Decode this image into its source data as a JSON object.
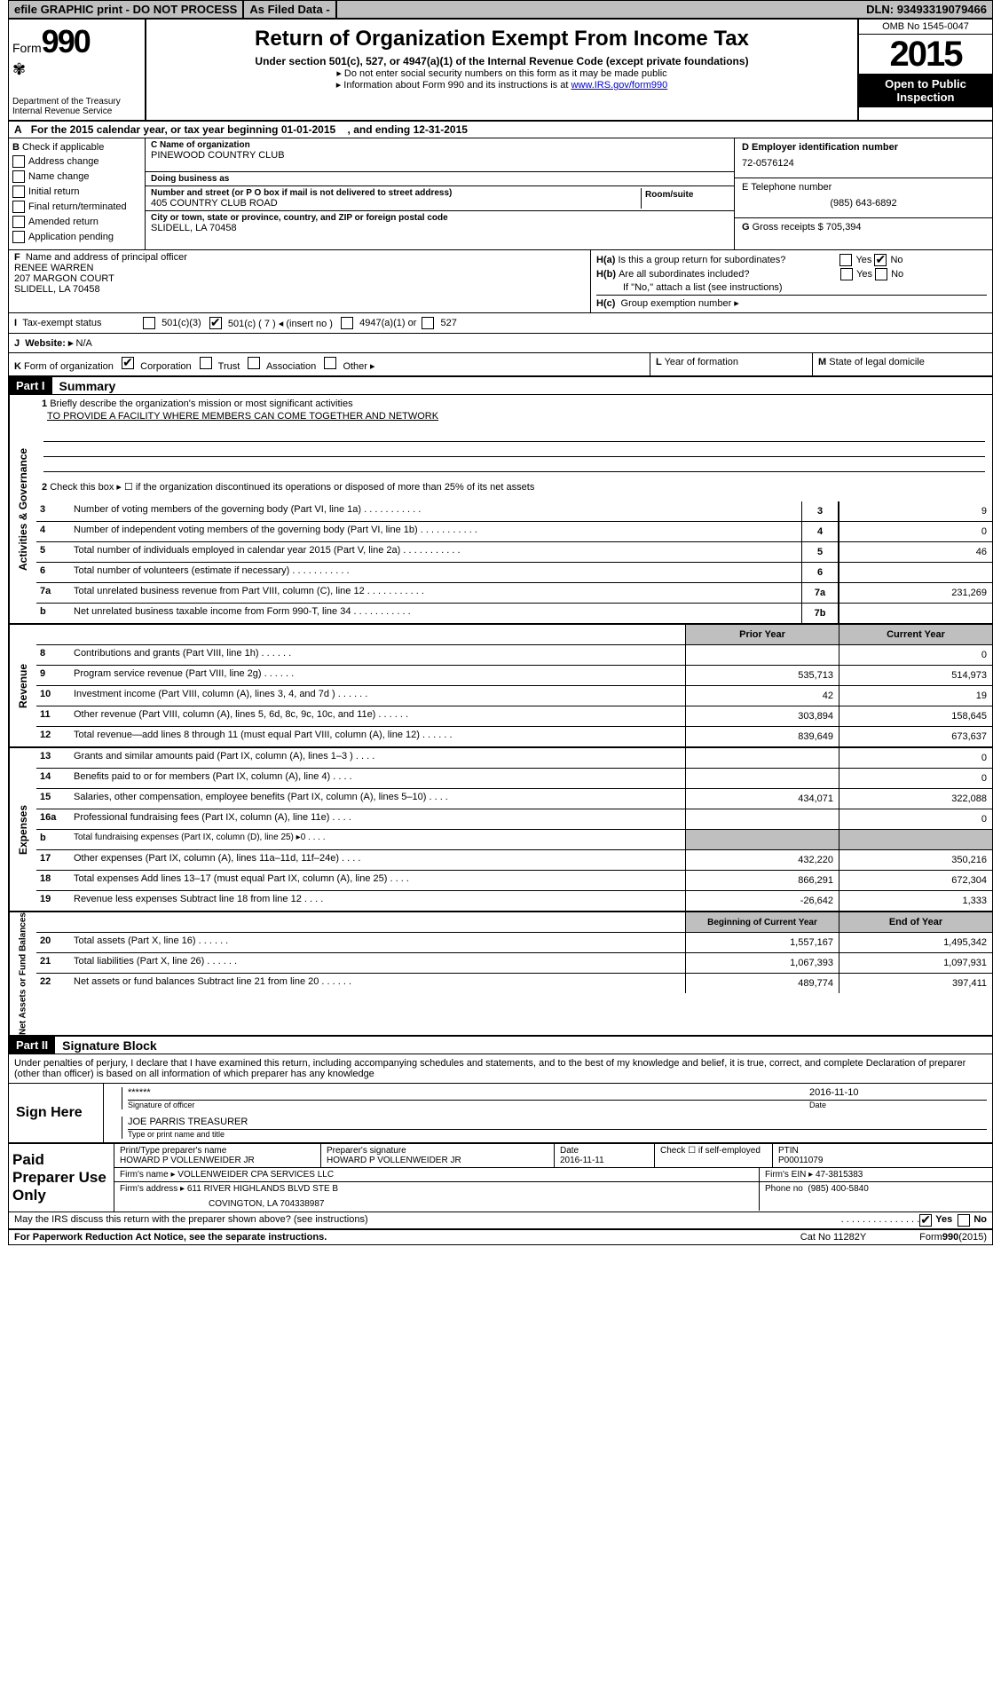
{
  "topbar": {
    "efile": "efile GRAPHIC print - DO NOT PROCESS",
    "asfiled": "As Filed Data -",
    "dln_label": "DLN:",
    "dln": "93493319079466"
  },
  "header": {
    "form_label": "Form",
    "form_num": "990",
    "dept": "Department of the Treasury",
    "irs": "Internal Revenue Service",
    "title": "Return of Organization Exempt From Income Tax",
    "subtitle": "Under section 501(c), 527, or 4947(a)(1) of the Internal Revenue Code (except private foundations)",
    "note1": "Do not enter social security numbers on this form as it may be made public",
    "note2": "Information about Form 990 and its instructions is at",
    "note2_link": "www.IRS.gov/form990",
    "omb": "OMB No 1545-0047",
    "year": "2015",
    "open": "Open to Public Inspection"
  },
  "row_a": {
    "prefix": "A",
    "text1": "For the 2015 calendar year, or tax year beginning",
    "begin": "01-01-2015",
    "text2": ", and ending",
    "end": "12-31-2015"
  },
  "section_b": {
    "label": "B",
    "check_label": "Check if applicable",
    "items": [
      "Address change",
      "Name change",
      "Initial return",
      "Final return/terminated",
      "Amended return",
      "Application pending"
    ]
  },
  "section_c": {
    "name_label": "C Name of organization",
    "name": "PINEWOOD COUNTRY CLUB",
    "dba_label": "Doing business as",
    "dba": "",
    "street_label": "Number and street (or P O box if mail is not delivered to street address)",
    "room_label": "Room/suite",
    "street": "405 COUNTRY CLUB ROAD",
    "city_label": "City or town, state or province, country, and ZIP or foreign postal code",
    "city": "SLIDELL, LA  70458"
  },
  "section_d": {
    "label": "D Employer identification number",
    "ein": "72-0576124"
  },
  "section_e": {
    "label": "E Telephone number",
    "phone": "(985) 643-6892"
  },
  "section_g": {
    "label": "G",
    "text": "Gross receipts $",
    "amount": "705,394"
  },
  "section_f": {
    "label": "F",
    "text": "Name and address of principal officer",
    "name": "RENEE WARREN",
    "street": "207 MARGON COURT",
    "city": "SLIDELL, LA  70458"
  },
  "section_h": {
    "ha_label": "H(a)",
    "ha_text": "Is this a group return for subordinates?",
    "ha_no": "No",
    "hb_label": "H(b)",
    "hb_text": "Are all subordinates included?",
    "hb_note": "If \"No,\" attach a list  (see instructions)",
    "hc_label": "H(c)",
    "hc_text": "Group exemption number ▸",
    "yes": "Yes",
    "no": "No"
  },
  "row_i": {
    "label": "I",
    "text": "Tax-exempt status",
    "opt1": "501(c)(3)",
    "opt2": "501(c) ( 7 ) ◂ (insert no )",
    "opt3": "4947(a)(1) or",
    "opt4": "527"
  },
  "row_j": {
    "label": "J",
    "text": "Website: ▸",
    "val": "N/A"
  },
  "row_k": {
    "label": "K",
    "text": "Form of organization",
    "opts": [
      "Corporation",
      "Trust",
      "Association",
      "Other ▸"
    ],
    "l_label": "L",
    "l_text": "Year of formation",
    "m_label": "M",
    "m_text": "State of legal domicile"
  },
  "part1": {
    "header": "Part I",
    "title": "Summary",
    "line1_label": "1",
    "line1_text": "Briefly describe the organization's mission or most significant activities",
    "mission": "TO PROVIDE A FACILITY WHERE MEMBERS CAN COME TOGETHER AND NETWORK",
    "line2_label": "2",
    "line2_text": "Check this box ▸ ☐ if the organization discontinued its operations or disposed of more than 25% of its net assets"
  },
  "governance": {
    "label": "Activities & Governance",
    "lines": [
      {
        "n": "3",
        "d": "Number of voting members of the governing body (Part VI, line 1a)",
        "c": "3",
        "v": "9"
      },
      {
        "n": "4",
        "d": "Number of independent voting members of the governing body (Part VI, line 1b)",
        "c": "4",
        "v": "0"
      },
      {
        "n": "5",
        "d": "Total number of individuals employed in calendar year 2015 (Part V, line 2a)",
        "c": "5",
        "v": "46"
      },
      {
        "n": "6",
        "d": "Total number of volunteers (estimate if necessary)",
        "c": "6",
        "v": ""
      },
      {
        "n": "7a",
        "d": "Total unrelated business revenue from Part VIII, column (C), line 12",
        "c": "7a",
        "v": "231,269"
      },
      {
        "n": "b",
        "d": "Net unrelated business taxable income from Form 990-T, line 34",
        "c": "7b",
        "v": ""
      }
    ]
  },
  "revenue": {
    "label": "Revenue",
    "prior_head": "Prior Year",
    "curr_head": "Current Year",
    "lines": [
      {
        "n": "8",
        "d": "Contributions and grants (Part VIII, line 1h)",
        "p": "",
        "c": "0"
      },
      {
        "n": "9",
        "d": "Program service revenue (Part VIII, line 2g)",
        "p": "535,713",
        "c": "514,973"
      },
      {
        "n": "10",
        "d": "Investment income (Part VIII, column (A), lines 3, 4, and 7d )",
        "p": "42",
        "c": "19"
      },
      {
        "n": "11",
        "d": "Other revenue (Part VIII, column (A), lines 5, 6d, 8c, 9c, 10c, and 11e)",
        "p": "303,894",
        "c": "158,645"
      },
      {
        "n": "12",
        "d": "Total revenue—add lines 8 through 11 (must equal Part VIII, column (A), line 12)",
        "p": "839,649",
        "c": "673,637"
      }
    ]
  },
  "expenses": {
    "label": "Expenses",
    "lines": [
      {
        "n": "13",
        "d": "Grants and similar amounts paid (Part IX, column (A), lines 1–3 )",
        "p": "",
        "c": "0"
      },
      {
        "n": "14",
        "d": "Benefits paid to or for members (Part IX, column (A), line 4)",
        "p": "",
        "c": "0"
      },
      {
        "n": "15",
        "d": "Salaries, other compensation, employee benefits (Part IX, column (A), lines 5–10)",
        "p": "434,071",
        "c": "322,088"
      },
      {
        "n": "16a",
        "d": "Professional fundraising fees (Part IX, column (A), line 11e)",
        "p": "",
        "c": "0"
      },
      {
        "n": "b",
        "d": "Total fundraising expenses (Part IX, column (D), line 25) ▸0",
        "p": "shaded",
        "c": "shaded"
      },
      {
        "n": "17",
        "d": "Other expenses (Part IX, column (A), lines 11a–11d, 11f–24e)",
        "p": "432,220",
        "c": "350,216"
      },
      {
        "n": "18",
        "d": "Total expenses  Add lines 13–17 (must equal Part IX, column (A), line 25)",
        "p": "866,291",
        "c": "672,304"
      },
      {
        "n": "19",
        "d": "Revenue less expenses  Subtract line 18 from line 12",
        "p": "-26,642",
        "c": "1,333"
      }
    ]
  },
  "netassets": {
    "label": "Net Assets or Fund Balances",
    "begin_head": "Beginning of Current Year",
    "end_head": "End of Year",
    "lines": [
      {
        "n": "20",
        "d": "Total assets (Part X, line 16)",
        "p": "1,557,167",
        "c": "1,495,342"
      },
      {
        "n": "21",
        "d": "Total liabilities (Part X, line 26)",
        "p": "1,067,393",
        "c": "1,097,931"
      },
      {
        "n": "22",
        "d": "Net assets or fund balances  Subtract line 21 from line 20",
        "p": "489,774",
        "c": "397,411"
      }
    ]
  },
  "part2": {
    "header": "Part II",
    "title": "Signature Block",
    "declaration": "Under penalties of perjury, I declare that I have examined this return, including accompanying schedules and statements, and to the best of my knowledge and belief, it is true, correct, and complete  Declaration of preparer (other than officer) is based on all information of which preparer has any knowledge"
  },
  "sign": {
    "label": "Sign Here",
    "stars": "******",
    "sig_label": "Signature of officer",
    "date": "2016-11-10",
    "date_label": "Date",
    "name": "JOE PARRIS TREASURER",
    "name_label": "Type or print name and title"
  },
  "paid": {
    "label": "Paid Preparer Use Only",
    "prep_name_label": "Print/Type preparer's name",
    "prep_name": "HOWARD P VOLLENWEIDER JR",
    "prep_sig_label": "Preparer's signature",
    "prep_sig": "HOWARD P VOLLENWEIDER JR",
    "date_label": "Date",
    "date": "2016-11-11",
    "check_label": "Check ☐ if self-employed",
    "ptin_label": "PTIN",
    "ptin": "P00011079",
    "firm_name_label": "Firm's name    ▸",
    "firm_name": "VOLLENWEIDER CPA SERVICES LLC",
    "firm_ein_label": "Firm's EIN ▸",
    "firm_ein": "47-3815383",
    "firm_addr_label": "Firm's address ▸",
    "firm_addr1": "611 RIVER HIGHLANDS BLVD STE B",
    "firm_addr2": "COVINGTON, LA  704338987",
    "phone_label": "Phone no",
    "phone": "(985) 400-5840"
  },
  "footer": {
    "discuss": "May the IRS discuss this return with the preparer shown above? (see instructions)",
    "yes": "Yes",
    "no": "No",
    "paperwork": "For Paperwork Reduction Act Notice, see the separate instructions.",
    "cat": "Cat No  11282Y",
    "form": "Form",
    "form990": "990",
    "year": "(2015)"
  }
}
